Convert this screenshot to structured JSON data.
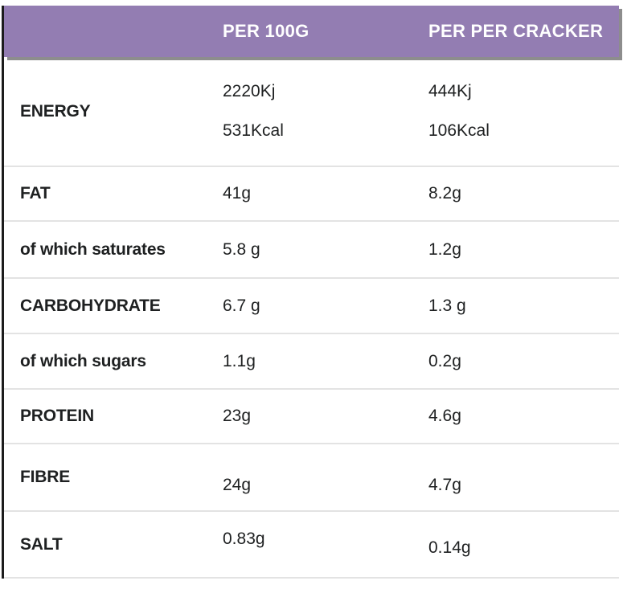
{
  "theme": {
    "header_background": "#937db2",
    "header_text_color": "#ffffff",
    "body_text_color": "#1e2021",
    "divider_color": "#e3e3e3",
    "left_border_color": "#1c1c1c",
    "header_shadow_color": "#8d8d8d"
  },
  "table": {
    "header": {
      "col1": "PER 100G",
      "col2": "PER PER CRACKER"
    },
    "rows": [
      {
        "label": "ENERGY",
        "per_100g": [
          "2220Kj",
          "531Kcal"
        ],
        "per_cracker": [
          "444Kj",
          "106Kcal"
        ]
      },
      {
        "label": "FAT",
        "per_100g": [
          "41g"
        ],
        "per_cracker": [
          "8.2g"
        ]
      },
      {
        "label": "of which saturates",
        "per_100g": [
          "5.8 g"
        ],
        "per_cracker": [
          "1.2g"
        ]
      },
      {
        "label": "CARBOHYDRATE",
        "per_100g": [
          "6.7 g"
        ],
        "per_cracker": [
          "1.3 g"
        ]
      },
      {
        "label": "of which sugars",
        "per_100g": [
          "1.1g"
        ],
        "per_cracker": [
          "0.2g"
        ]
      },
      {
        "label": "PROTEIN",
        "per_100g": [
          "23g"
        ],
        "per_cracker": [
          "4.6g"
        ]
      },
      {
        "label": "FIBRE",
        "per_100g": [
          "24g"
        ],
        "per_cracker": [
          "4.7g"
        ]
      },
      {
        "label": "SALT",
        "per_100g": [
          "0.83g"
        ],
        "per_cracker": [
          "0.14g"
        ]
      }
    ]
  }
}
